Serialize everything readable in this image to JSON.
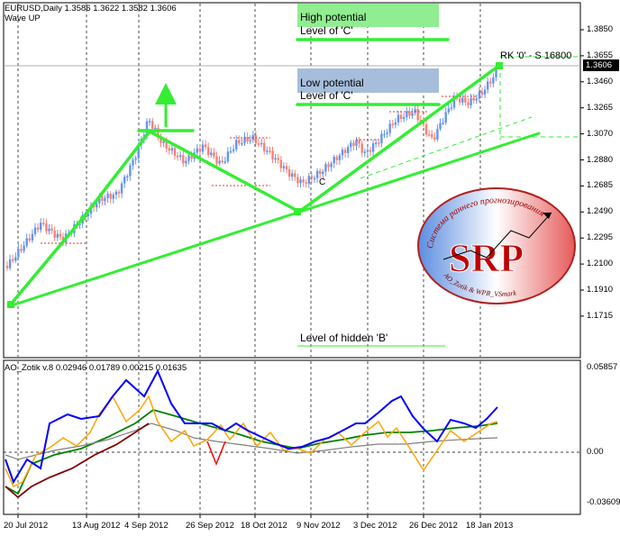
{
  "header": {
    "symbol_line": "EURUSD,Daily  1.3586 1.3622 1.3582 1.3606",
    "wave_label": "Wave UP",
    "indicator_line": "AO_Zotik v.8 0.02946 0.01789 0.00215 0.01635"
  },
  "levels": {
    "high_title": "High potential",
    "high_sub": "Level of 'C'",
    "low_title": "Low potential",
    "low_sub": "Level of 'C'",
    "hidden_b": "Level of hidden 'B'",
    "rk_label": "RK '0' - S 16800",
    "wave_c_label": "C"
  },
  "price_axis": {
    "ticks": [
      "1.3850",
      "1.3655",
      "1.3460",
      "1.3265",
      "1.3070",
      "1.2880",
      "1.2685",
      "1.2490",
      "1.2295",
      "1.2100",
      "1.1910",
      "1.1715"
    ],
    "current": "1.3606"
  },
  "indicator_axis": {
    "ticks": [
      "0.05857",
      "0.00",
      "-0.03609"
    ]
  },
  "time_axis": {
    "ticks": [
      "20 Jul 2012",
      "13 Aug 2012",
      "4 Sep 2012",
      "26 Sep 2012",
      "18 Oct 2012",
      "9 Nov 2012",
      "3 Dec 2012",
      "26 Dec 2012",
      "18 Jan 2013"
    ]
  },
  "logo": {
    "letters": "SRP",
    "arc_top": "Система раннего прогнозирования",
    "arc_bottom": "AO_Zotik & WPR_VSmark"
  },
  "colors": {
    "bull": "#6495ed",
    "bear": "#fa8072",
    "wave": "#33ee33",
    "ao_blue": "#0000ff",
    "ao_orange": "#ffa500",
    "ao_red": "#ff0000",
    "ao_green": "#008000",
    "ao_gray": "#808080",
    "ao_darkred": "#800000"
  },
  "chart_data": {
    "type": "candlestick",
    "series": [
      {
        "name": "EURUSD Daily close (estimated)",
        "x": [
          "20 Jul 2012",
          "13 Aug 2012",
          "4 Sep 2012",
          "26 Sep 2012",
          "18 Oct 2012",
          "9 Nov 2012",
          "3 Dec 2012",
          "26 Dec 2012",
          "18 Jan 2013"
        ],
        "values": [
          1.212,
          1.235,
          1.312,
          1.29,
          1.305,
          1.272,
          1.305,
          1.318,
          1.3606
        ]
      }
    ],
    "ylim": [
      1.1715,
      1.385
    ]
  }
}
